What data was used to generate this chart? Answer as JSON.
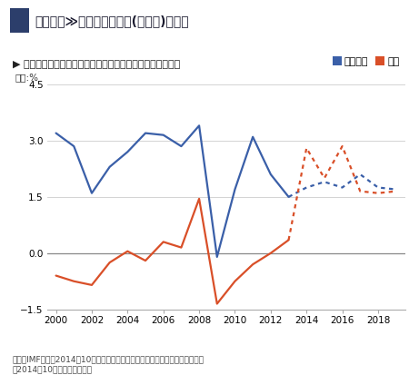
{
  "title": "経済面　≫日米インフレ率(年平均)の比較",
  "subtitle": "▶ インフレ率とは、消費者物価指数の対前年上昇率のこと。",
  "ylabel": "単位:%",
  "source": "出典：IMFによる2014年10月時点の推計を流用した「世界経済のネタ帳」より\n〔2014年10月以降は、推測〕",
  "legend_america": "アメリカ",
  "legend_japan": "日本",
  "america_solid_x": [
    2000,
    2001,
    2002,
    2003,
    2004,
    2005,
    2006,
    2007,
    2008,
    2009,
    2010,
    2011,
    2012,
    2013
  ],
  "america_solid_y": [
    3.2,
    2.85,
    1.6,
    2.3,
    2.7,
    3.2,
    3.15,
    2.85,
    3.4,
    -0.1,
    1.7,
    3.1,
    2.1,
    1.5
  ],
  "america_dotted_x": [
    2013,
    2014,
    2015,
    2016,
    2017,
    2018,
    2019
  ],
  "america_dotted_y": [
    1.5,
    1.75,
    1.9,
    1.75,
    2.1,
    1.75,
    1.7
  ],
  "japan_solid_x": [
    2000,
    2001,
    2002,
    2003,
    2004,
    2005,
    2006,
    2007,
    2008,
    2009,
    2010,
    2011,
    2012,
    2013
  ],
  "japan_solid_y": [
    -0.6,
    -0.75,
    -0.85,
    -0.25,
    0.05,
    -0.2,
    0.3,
    0.15,
    1.45,
    -1.35,
    -0.75,
    -0.3,
    0.0,
    0.35
  ],
  "japan_dotted_x": [
    2013,
    2014,
    2015,
    2016,
    2017,
    2018,
    2019
  ],
  "japan_dotted_y": [
    0.35,
    2.8,
    2.0,
    2.85,
    1.65,
    1.6,
    1.65
  ],
  "america_color": "#3a5fa8",
  "japan_color": "#d94f28",
  "title_square_color": "#2c3e6b",
  "ylim": [
    -1.5,
    4.5
  ],
  "yticks": [
    -1.5,
    0.0,
    1.5,
    3.0,
    4.5
  ],
  "xlim": [
    1999.5,
    2019.5
  ],
  "xticks": [
    2000,
    2002,
    2004,
    2006,
    2008,
    2010,
    2012,
    2014,
    2016,
    2018
  ],
  "bg_color": "#ffffff",
  "subtitle_bg": "#ebebeb",
  "zero_line_color": "#888888",
  "grid_color": "#cccccc",
  "spine_color": "#aaaaaa"
}
